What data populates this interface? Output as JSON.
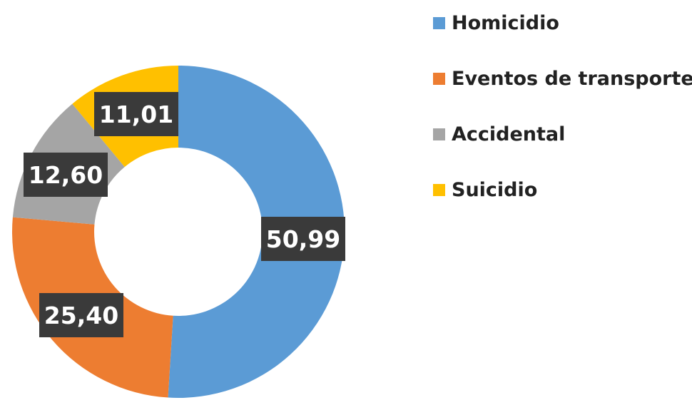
{
  "chart_data": {
    "type": "pie",
    "variant": "donut",
    "title": "",
    "categories": [
      "Homicidio",
      "Eventos de transporte",
      "Accidental",
      "Suicidio"
    ],
    "values": [
      50.99,
      25.4,
      12.6,
      11.01
    ],
    "data_labels": [
      "50,99",
      "25,40",
      "12,60",
      "11,01"
    ],
    "colors": [
      "#5b9bd5",
      "#ed7d31",
      "#a5a5a5",
      "#ffc000"
    ],
    "legend": "right",
    "start_angle": "12 o'clock",
    "direction": "clockwise"
  }
}
